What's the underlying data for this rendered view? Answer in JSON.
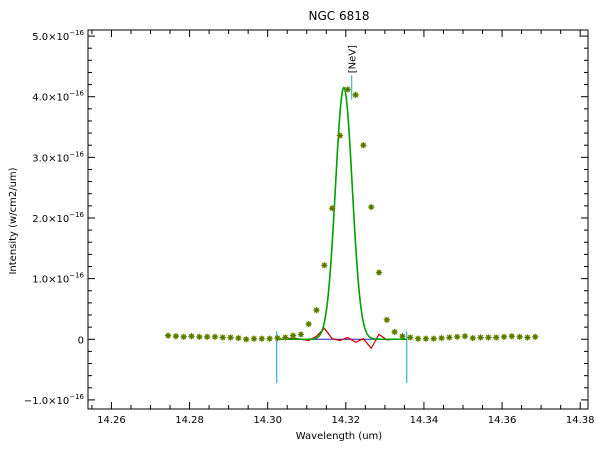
{
  "chart_data": {
    "type": "scatter",
    "title": "NGC 6818",
    "xlabel": "Wavelength (um)",
    "ylabel": "Intensity (w/cm2/um)",
    "xlim": [
      14.254,
      14.382
    ],
    "ylim": [
      -1.15e-16,
      5.1e-16
    ],
    "x_ticks": [
      14.26,
      14.28,
      14.3,
      14.32,
      14.34,
      14.36,
      14.38
    ],
    "x_tick_labels": [
      "14.26",
      "14.28",
      "14.30",
      "14.32",
      "14.34",
      "14.36",
      "14.38"
    ],
    "y_ticks": [
      {
        "value": 5e-16,
        "base": "5.0×10",
        "exp": "−16"
      },
      {
        "value": 4e-16,
        "base": "4.0×10",
        "exp": "−16"
      },
      {
        "value": 3e-16,
        "base": "3.0×10",
        "exp": "−16"
      },
      {
        "value": 2e-16,
        "base": "2.0×10",
        "exp": "−16"
      },
      {
        "value": 1e-16,
        "base": "1.0×10",
        "exp": "−16"
      },
      {
        "value": 0,
        "base": "0",
        "exp": ""
      },
      {
        "value": -1e-16,
        "base": "−1.0×10",
        "exp": "−16"
      }
    ],
    "line_label": {
      "text": "[NeV]",
      "x": 14.3215
    },
    "fit_window": [
      14.3023,
      14.3356
    ],
    "fit": {
      "amplitude": 4.15e-16,
      "center": 14.3195,
      "sigma": 0.00215
    },
    "data_points": {
      "x": [
        14.2745,
        14.2765,
        14.2785,
        14.2805,
        14.2825,
        14.2845,
        14.2865,
        14.2885,
        14.2905,
        14.2925,
        14.2945,
        14.2965,
        14.2985,
        14.3005,
        14.3025,
        14.3045,
        14.3065,
        14.3085,
        14.3105,
        14.3125,
        14.3145,
        14.3165,
        14.3185,
        14.3205,
        14.3225,
        14.3245,
        14.3265,
        14.3285,
        14.3305,
        14.3325,
        14.3345,
        14.3365,
        14.3385,
        14.3405,
        14.3425,
        14.3445,
        14.3465,
        14.3485,
        14.3505,
        14.3525,
        14.3545,
        14.3565,
        14.3585,
        14.3605,
        14.3625,
        14.3645,
        14.3665,
        14.3685
      ],
      "y": [
        6e-18,
        5e-18,
        4e-18,
        5e-18,
        4e-18,
        4e-18,
        4e-18,
        3e-18,
        3e-18,
        2e-18,
        0,
        1e-18,
        1e-18,
        1e-18,
        2e-18,
        3e-18,
        6e-18,
        8e-18,
        2.5e-17,
        4.8e-17,
        1.22e-16,
        2.16e-16,
        3.36e-16,
        4.12e-16,
        4.03e-16,
        3.2e-16,
        2.18e-16,
        1.1e-16,
        3.2e-17,
        1.2e-17,
        5e-18,
        3e-18,
        1e-18,
        1e-18,
        1e-18,
        2e-18,
        3e-18,
        4e-18,
        5e-18,
        2e-18,
        3e-18,
        3e-18,
        3e-18,
        4e-18,
        5e-18,
        4e-18,
        3e-18,
        4e-18
      ]
    },
    "residuals": {
      "x": [
        14.3045,
        14.3065,
        14.3085,
        14.3105,
        14.3125,
        14.3145,
        14.3165,
        14.3185,
        14.3205,
        14.3225,
        14.3245,
        14.3265,
        14.3285,
        14.3305,
        14.3325
      ],
      "y": [
        0,
        2e-18,
        0,
        -2e-18,
        5e-18,
        1.8e-17,
        1e-18,
        -2e-18,
        3e-18,
        -5e-18,
        1e-18,
        -1.5e-17,
        8e-18,
        -1e-18,
        0
      ]
    },
    "colors": {
      "points_fill": "#e8a000",
      "points_star": "#3a7a00",
      "fit": "#00a000",
      "residual": "#cc0000",
      "baseline": "#2020c0",
      "window": "#40b8c8"
    },
    "grid": false
  }
}
